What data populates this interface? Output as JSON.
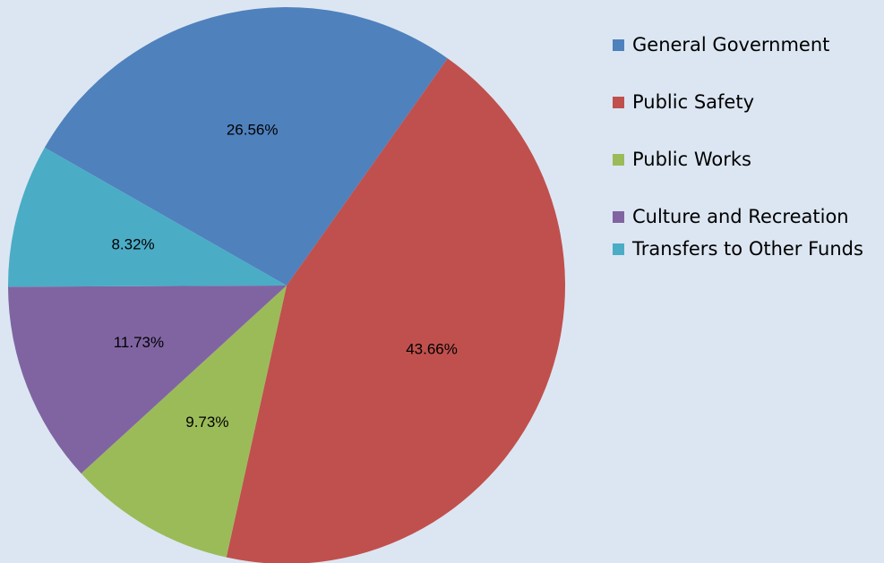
{
  "chart_data": {
    "type": "pie",
    "categories": [
      "General Government",
      "Public Safety",
      "Public Works",
      "Culture and Recreation",
      "Transfers to Other Funds"
    ],
    "values": [
      26.56,
      43.66,
      9.73,
      11.73,
      8.32
    ],
    "value_labels": [
      "26.56%",
      "43.66%",
      "9.73%",
      "11.73%",
      "8.32%"
    ],
    "colors": [
      "#4f81bd",
      "#c0504d",
      "#9bbb59",
      "#8064a2",
      "#4bacc6"
    ],
    "legend": "right"
  }
}
